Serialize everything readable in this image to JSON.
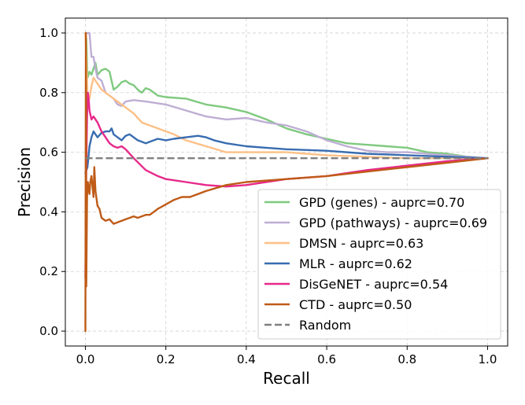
{
  "chart_data": {
    "type": "line",
    "title": "",
    "xlabel": "Recall",
    "ylabel": "Precision",
    "xlim": [
      -0.05,
      1.05
    ],
    "ylim": [
      -0.05,
      1.05
    ],
    "xticks": [
      0.0,
      0.2,
      0.4,
      0.6,
      0.8,
      1.0
    ],
    "yticks": [
      0.0,
      0.2,
      0.4,
      0.6,
      0.8,
      1.0
    ],
    "xtick_labels": [
      "0.0",
      "0.2",
      "0.4",
      "0.6",
      "0.8",
      "1.0"
    ],
    "ytick_labels": [
      "0.0",
      "0.2",
      "0.4",
      "0.6",
      "0.8",
      "1.0"
    ],
    "grid": true,
    "legend_position": "lower-right",
    "series": [
      {
        "name": "GPD (genes) - auprc=0.70",
        "color": "#7fc97f",
        "x": [
          0.0,
          0.002,
          0.005,
          0.01,
          0.015,
          0.02,
          0.025,
          0.03,
          0.04,
          0.05,
          0.06,
          0.07,
          0.08,
          0.09,
          0.1,
          0.11,
          0.12,
          0.13,
          0.14,
          0.15,
          0.16,
          0.18,
          0.2,
          0.25,
          0.3,
          0.35,
          0.4,
          0.45,
          0.5,
          0.55,
          0.6,
          0.65,
          0.7,
          0.75,
          0.8,
          0.85,
          0.9,
          0.95,
          1.0
        ],
        "y": [
          1.0,
          0.98,
          0.85,
          0.87,
          0.86,
          0.88,
          0.9,
          0.86,
          0.875,
          0.88,
          0.87,
          0.81,
          0.82,
          0.835,
          0.84,
          0.83,
          0.825,
          0.81,
          0.8,
          0.815,
          0.81,
          0.79,
          0.785,
          0.78,
          0.76,
          0.75,
          0.735,
          0.71,
          0.68,
          0.66,
          0.645,
          0.63,
          0.625,
          0.62,
          0.615,
          0.6,
          0.595,
          0.585,
          0.58
        ]
      },
      {
        "name": "GPD (pathways) - auprc=0.69",
        "color": "#beaed4",
        "x": [
          0.0,
          0.005,
          0.01,
          0.015,
          0.02,
          0.025,
          0.03,
          0.04,
          0.05,
          0.06,
          0.07,
          0.08,
          0.09,
          0.1,
          0.12,
          0.15,
          0.2,
          0.25,
          0.3,
          0.35,
          0.4,
          0.45,
          0.5,
          0.55,
          0.6,
          0.65,
          0.7,
          0.75,
          0.8,
          0.85,
          0.9,
          0.95,
          1.0
        ],
        "y": [
          1.0,
          1.0,
          1.0,
          0.92,
          0.92,
          0.88,
          0.85,
          0.84,
          0.8,
          0.79,
          0.78,
          0.76,
          0.755,
          0.77,
          0.775,
          0.77,
          0.76,
          0.74,
          0.72,
          0.71,
          0.715,
          0.7,
          0.69,
          0.67,
          0.64,
          0.62,
          0.605,
          0.6,
          0.6,
          0.595,
          0.59,
          0.585,
          0.58
        ]
      },
      {
        "name": "DMSN - auprc=0.63",
        "color": "#fdc086",
        "x": [
          0.0,
          0.005,
          0.01,
          0.015,
          0.02,
          0.025,
          0.03,
          0.04,
          0.05,
          0.06,
          0.07,
          0.08,
          0.09,
          0.1,
          0.12,
          0.14,
          0.16,
          0.18,
          0.2,
          0.22,
          0.25,
          0.3,
          0.35,
          0.4,
          0.5,
          0.6,
          0.7,
          0.8,
          0.9,
          1.0
        ],
        "y": [
          1.0,
          0.8,
          0.78,
          0.82,
          0.85,
          0.84,
          0.83,
          0.81,
          0.8,
          0.79,
          0.78,
          0.77,
          0.76,
          0.75,
          0.73,
          0.7,
          0.69,
          0.68,
          0.67,
          0.66,
          0.64,
          0.62,
          0.6,
          0.6,
          0.6,
          0.59,
          0.585,
          0.58,
          0.58,
          0.58
        ]
      },
      {
        "name": "MLR - auprc=0.62",
        "color": "#386cb0",
        "x": [
          0.0,
          0.005,
          0.01,
          0.015,
          0.02,
          0.025,
          0.03,
          0.04,
          0.05,
          0.06,
          0.065,
          0.07,
          0.08,
          0.09,
          0.1,
          0.11,
          0.12,
          0.13,
          0.14,
          0.15,
          0.16,
          0.17,
          0.18,
          0.2,
          0.22,
          0.25,
          0.28,
          0.3,
          0.32,
          0.35,
          0.4,
          0.45,
          0.5,
          0.6,
          0.7,
          0.8,
          0.9,
          1.0
        ],
        "y": [
          0.53,
          0.55,
          0.62,
          0.65,
          0.67,
          0.66,
          0.65,
          0.665,
          0.67,
          0.67,
          0.68,
          0.66,
          0.65,
          0.64,
          0.655,
          0.66,
          0.65,
          0.64,
          0.635,
          0.63,
          0.635,
          0.64,
          0.645,
          0.64,
          0.645,
          0.65,
          0.655,
          0.65,
          0.64,
          0.63,
          0.62,
          0.615,
          0.61,
          0.605,
          0.595,
          0.59,
          0.585,
          0.58
        ]
      },
      {
        "name": "DisGeNET - auprc=0.54",
        "color": "#e7298a",
        "x": [
          0.0,
          0.002,
          0.004,
          0.006,
          0.008,
          0.01,
          0.015,
          0.02,
          0.03,
          0.04,
          0.05,
          0.06,
          0.07,
          0.08,
          0.09,
          0.1,
          0.12,
          0.15,
          0.18,
          0.2,
          0.25,
          0.3,
          0.35,
          0.4,
          0.5,
          0.6,
          0.7,
          0.8,
          0.9,
          1.0
        ],
        "y": [
          0.18,
          0.55,
          0.72,
          0.8,
          0.78,
          0.74,
          0.71,
          0.72,
          0.7,
          0.67,
          0.65,
          0.63,
          0.62,
          0.615,
          0.62,
          0.61,
          0.58,
          0.54,
          0.52,
          0.51,
          0.5,
          0.49,
          0.485,
          0.49,
          0.51,
          0.52,
          0.54,
          0.555,
          0.57,
          0.58
        ]
      },
      {
        "name": "CTD - auprc=0.50",
        "color": "#bf5b17",
        "x": [
          0.0,
          0.001,
          0.002,
          0.003,
          0.004,
          0.006,
          0.008,
          0.01,
          0.012,
          0.015,
          0.02,
          0.022,
          0.025,
          0.03,
          0.035,
          0.04,
          0.05,
          0.06,
          0.07,
          0.08,
          0.09,
          0.1,
          0.11,
          0.12,
          0.13,
          0.14,
          0.15,
          0.16,
          0.17,
          0.18,
          0.2,
          0.22,
          0.24,
          0.26,
          0.3,
          0.35,
          0.4,
          0.5,
          0.6,
          0.7,
          0.8,
          0.9,
          1.0
        ],
        "y": [
          0.0,
          1.0,
          0.15,
          0.3,
          0.45,
          0.5,
          0.48,
          0.46,
          0.5,
          0.52,
          0.45,
          0.55,
          0.47,
          0.42,
          0.41,
          0.38,
          0.37,
          0.375,
          0.36,
          0.365,
          0.37,
          0.375,
          0.38,
          0.385,
          0.38,
          0.385,
          0.39,
          0.39,
          0.4,
          0.41,
          0.425,
          0.44,
          0.45,
          0.45,
          0.47,
          0.49,
          0.5,
          0.51,
          0.52,
          0.535,
          0.55,
          0.565,
          0.58
        ]
      }
    ],
    "baseline": {
      "name": "Random",
      "color": "#808080",
      "y": 0.58
    }
  }
}
